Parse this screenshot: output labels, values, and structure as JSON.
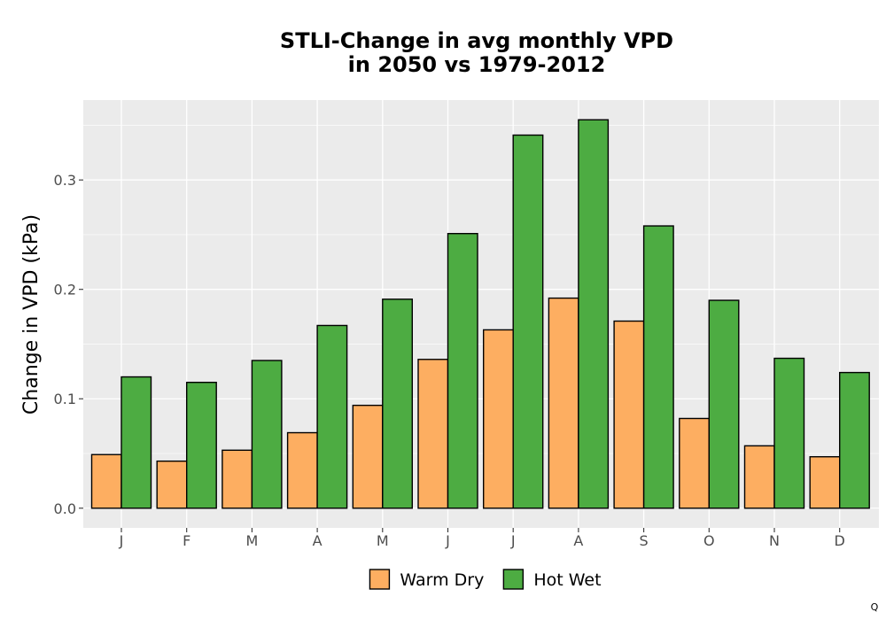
{
  "chart_data": {
    "type": "bar",
    "title_line1": "STLI-Change in avg monthly VPD",
    "title_line2": "in 2050 vs 1979-2012",
    "xlabel": "",
    "ylabel": "Change in VPD (kPa)",
    "categories": [
      "J",
      "F",
      "M",
      "A",
      "M",
      "J",
      "J",
      "A",
      "S",
      "O",
      "N",
      "D"
    ],
    "series": [
      {
        "name": "Warm Dry",
        "color": "#FDAE61",
        "values": [
          0.049,
          0.043,
          0.053,
          0.069,
          0.094,
          0.136,
          0.163,
          0.192,
          0.171,
          0.082,
          0.057,
          0.047
        ]
      },
      {
        "name": "Hot Wet",
        "color": "#4DAC42",
        "values": [
          0.12,
          0.115,
          0.135,
          0.167,
          0.191,
          0.251,
          0.341,
          0.355,
          0.258,
          0.19,
          0.137,
          0.124
        ]
      }
    ],
    "ylim": [
      -0.018,
      0.373
    ],
    "yticks": [
      0.0,
      0.1,
      0.2,
      0.3
    ],
    "ytick_labels": [
      "0.0",
      "0.1",
      "0.2",
      "0.3"
    ],
    "grid": true,
    "legend_position": "bottom",
    "panel_background": "#EBEBEB",
    "bar_outline": "#000000"
  },
  "corner_mark": "Q"
}
